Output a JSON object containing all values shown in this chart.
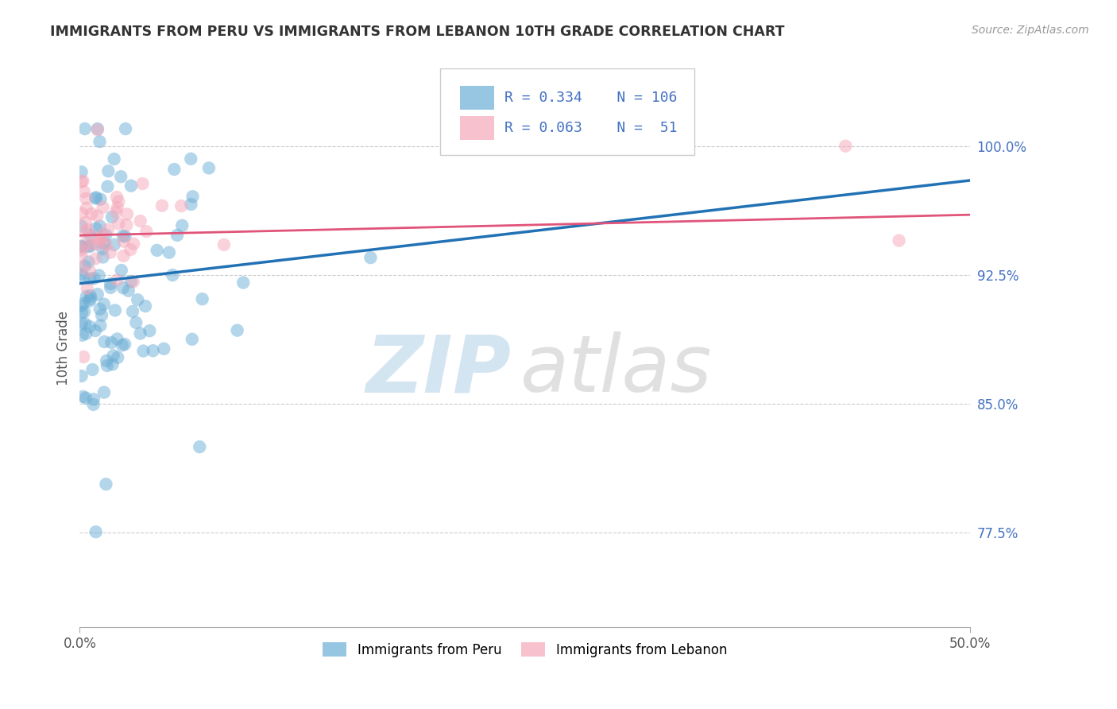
{
  "title": "IMMIGRANTS FROM PERU VS IMMIGRANTS FROM LEBANON 10TH GRADE CORRELATION CHART",
  "source": "Source: ZipAtlas.com",
  "ylabel": "10th Grade",
  "peru_color": "#6baed6",
  "lebanon_color": "#f4a7b9",
  "peru_R": 0.334,
  "peru_N": 106,
  "lebanon_R": 0.063,
  "lebanon_N": 51,
  "peru_line_color": "#2171b5",
  "lebanon_line_color": "#e0547a",
  "xmin": 0.0,
  "xmax": 0.5,
  "ymin": 0.72,
  "ymax": 1.045,
  "yticks": [
    0.775,
    0.85,
    0.925,
    1.0
  ],
  "ytick_labels": [
    "77.5%",
    "85.0%",
    "92.5%",
    "100.0%"
  ],
  "legend_peru": "Immigrants from Peru",
  "legend_lebanon": "Immigrants from Lebanon",
  "peru_line_x0": 0.0,
  "peru_line_x1": 0.5,
  "peru_line_y0": 0.92,
  "peru_line_y1": 0.98,
  "lebanon_line_x0": 0.0,
  "lebanon_line_x1": 0.5,
  "lebanon_line_y0": 0.948,
  "lebanon_line_y1": 0.96
}
